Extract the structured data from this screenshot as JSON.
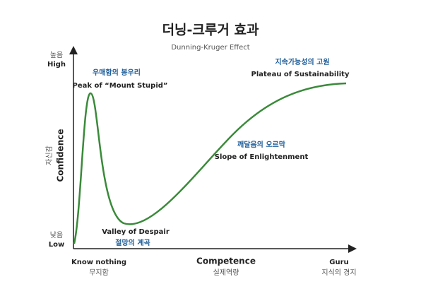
{
  "header": {
    "title": "더닝-크루거 효과",
    "subtitle": "Dunning-Kruger Effect"
  },
  "y_axis": {
    "title_ko": "자신감",
    "title_en": "Confidence",
    "high_ko": "높음",
    "high_en": "High",
    "low_ko": "낮음",
    "low_en": "Low"
  },
  "x_axis": {
    "title_en": "Competence",
    "title_ko": "실제역량",
    "left_en": "Know nothing",
    "left_ko": "무지함",
    "right_en": "Guru",
    "right_ko": "지식의 경지"
  },
  "annotations": [
    {
      "ko": "우매함의 봉우리",
      "en": "Peak of “Mount Stupid”"
    },
    {
      "ko": "절망의 계곡",
      "en": "Valley of Despair"
    },
    {
      "ko": "깨달음의 오르막",
      "en": "Slope of Enlightenment"
    },
    {
      "ko": "지속가능성의 고원",
      "en": "Plateau of Sustainability"
    }
  ]
}
